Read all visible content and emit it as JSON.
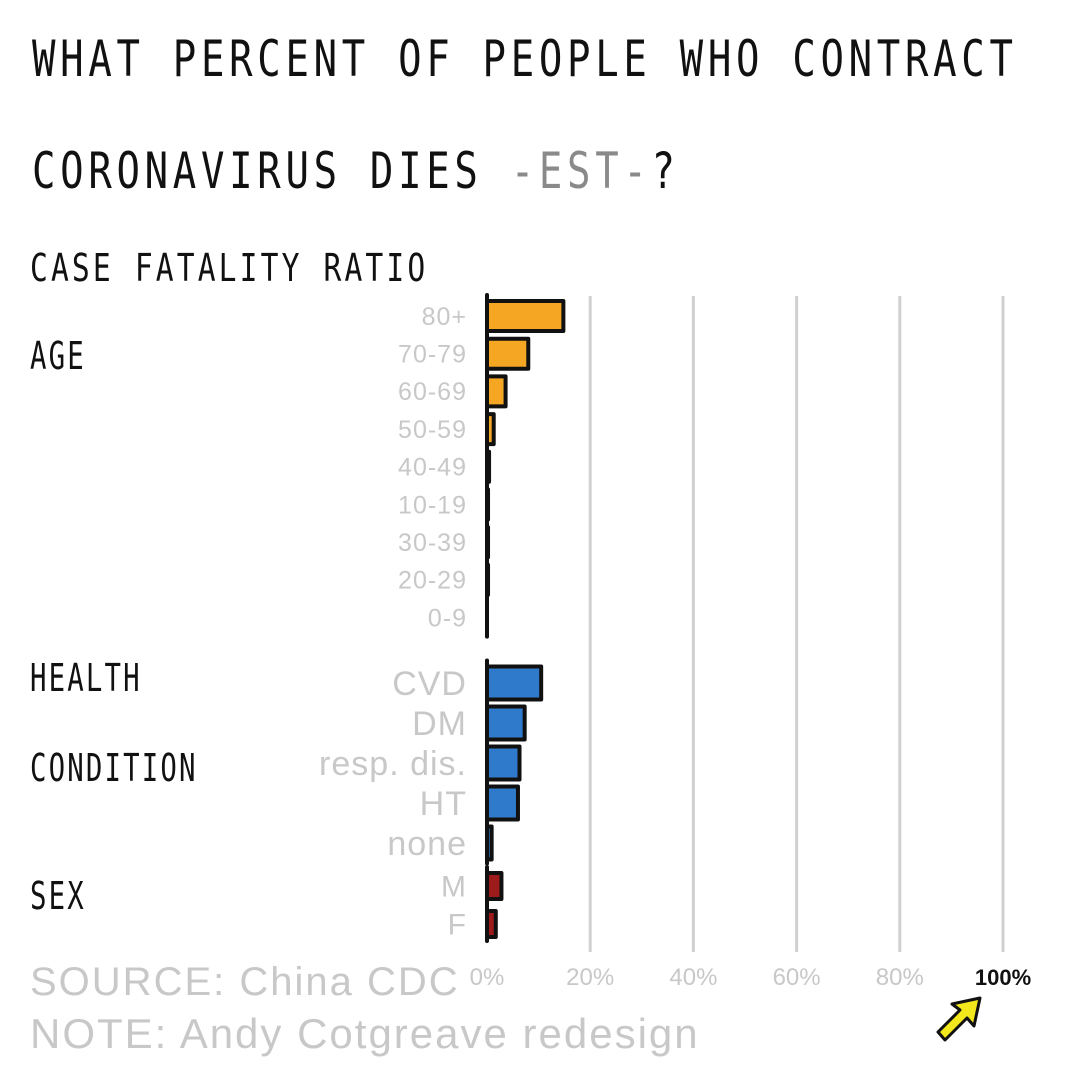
{
  "title": {
    "line1": "WHAT PERCENT OF PEOPLE WHO CONTRACT",
    "line2": "CORONAVIRUS DIES",
    "est": "-EST-",
    "qmark": "?"
  },
  "subtitle": "CASE FATALITY RATIO",
  "group_labels": {
    "age": "AGE",
    "health_line1": "HEALTH",
    "health_line2": "CONDITION",
    "sex": "SEX"
  },
  "footer": {
    "source": "SOURCE: China CDC",
    "note": "NOTE: Andy Cotgreave redesign"
  },
  "highlight_icon": "arrow-up-right-icon",
  "colors": {
    "age": "#F5A623",
    "health": "#2F7ACB",
    "sex": "#9E1B1B",
    "grid": "#d0d0d0",
    "muted_text": "#c8c8c8",
    "highlight": "#F2E81C"
  },
  "chart_data": {
    "type": "bar",
    "orientation": "horizontal",
    "xlim": [
      0,
      100
    ],
    "x_ticks": [
      "0%",
      "20%",
      "40%",
      "60%",
      "80%",
      "100%"
    ],
    "x_tick_values": [
      0,
      20,
      40,
      60,
      80,
      100
    ],
    "highlighted_tick": "100%",
    "grid": true,
    "groups": [
      {
        "key": "age",
        "categories": [
          "80+",
          "70-79",
          "60-69",
          "50-59",
          "40-49",
          "10-19",
          "30-39",
          "20-29",
          "0-9"
        ],
        "values": [
          14.8,
          8.0,
          3.6,
          1.3,
          0.4,
          0.2,
          0.2,
          0.2,
          0.0
        ]
      },
      {
        "key": "health",
        "categories": [
          "CVD",
          "DM",
          "resp. dis.",
          "HT",
          "none"
        ],
        "values": [
          10.5,
          7.3,
          6.3,
          6.0,
          0.9
        ]
      },
      {
        "key": "sex",
        "categories": [
          "M",
          "F"
        ],
        "values": [
          2.8,
          1.7
        ]
      }
    ]
  }
}
